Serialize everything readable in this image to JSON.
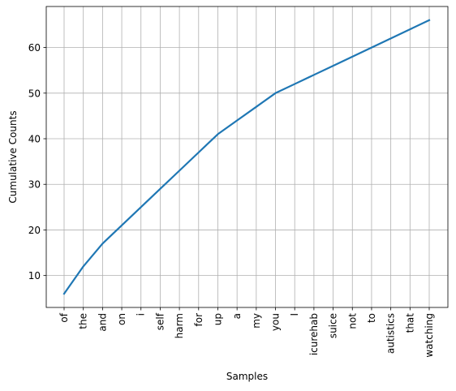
{
  "chart_data": {
    "type": "line",
    "title": "",
    "xlabel": "Samples",
    "ylabel": "Cumulative Counts",
    "categories": [
      "of",
      "the",
      "and",
      "on",
      "i",
      "self",
      "harm",
      "for",
      "up",
      "a",
      "my",
      "you",
      "I",
      "icurehab",
      "suice",
      "not",
      "to",
      "autistics",
      "that",
      "watching"
    ],
    "series": [
      {
        "values": [
          6,
          12,
          17,
          21,
          25,
          29,
          33,
          37,
          41,
          44,
          47,
          50,
          52,
          54,
          56,
          58,
          60,
          62,
          64,
          66
        ]
      }
    ],
    "ylim": [
      3,
      69
    ],
    "yticks": [
      10,
      20,
      30,
      40,
      50,
      60
    ],
    "grid": true,
    "line_color": "#1f77b4"
  }
}
